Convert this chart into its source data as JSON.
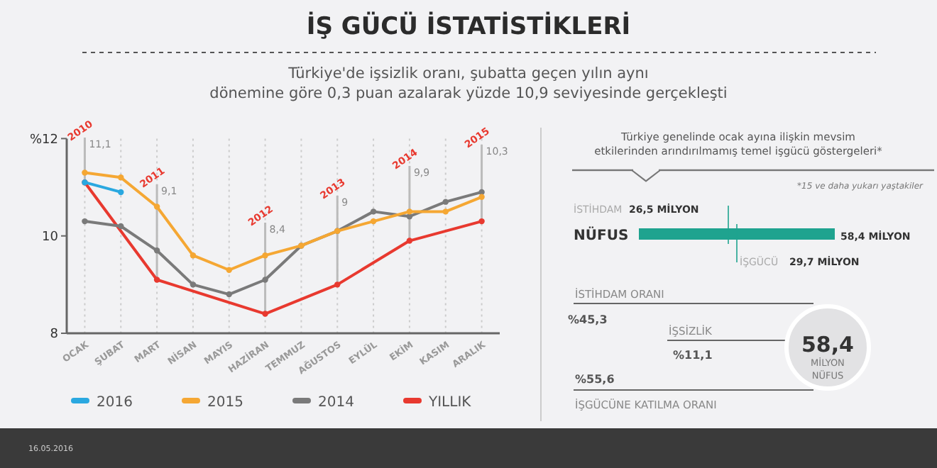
{
  "chart_data": [
    {
      "type": "line",
      "title": "İŞ GÜCÜ İSTATİSTİKLERİ",
      "subtitle": "Türkiye'de işsizlik oranı, şubatta geçen yılın aynı dönemine göre 0,3 puan azalarak yüzde 10,9 seviyesinde gerçekleşti",
      "categories": [
        "OCAK",
        "ŞUBAT",
        "MART",
        "NİSAN",
        "MAYIS",
        "HAZİRAN",
        "TEMMUZ",
        "AĞUSTOS",
        "EYLÜL",
        "EKİM",
        "KASIM",
        "ARALIK"
      ],
      "ylim": [
        8,
        12
      ],
      "yticks": [
        8,
        10,
        {
          "value": 12,
          "label": "%12"
        }
      ],
      "grid": "x",
      "legend": "bottom",
      "marker": "circle",
      "series": [
        {
          "name": "2016",
          "color": "#2aa8e0",
          "values": [
            11.1,
            10.9,
            null,
            null,
            null,
            null,
            null,
            null,
            null,
            null,
            null,
            null
          ]
        },
        {
          "name": "2015",
          "color": "#f5a733",
          "values": [
            11.3,
            11.2,
            10.6,
            9.6,
            9.3,
            9.6,
            9.8,
            10.1,
            10.3,
            10.5,
            10.5,
            10.8
          ]
        },
        {
          "name": "2014",
          "color": "#7a7a7a",
          "values": [
            10.3,
            10.2,
            9.7,
            9.0,
            8.8,
            9.1,
            9.8,
            10.1,
            10.5,
            10.4,
            10.7,
            10.9
          ]
        },
        {
          "name": "YILLIK",
          "color": "#e8392f",
          "x": [
            "OCAK",
            "MART",
            "HAZİRAN",
            "AĞUSTOS",
            "EKİM",
            "ARALIK"
          ],
          "values": [
            11.1,
            9.1,
            8.4,
            9.0,
            9.9,
            10.3
          ],
          "value_labels": [
            "11,1",
            "9,1",
            "8,4",
            "9",
            "9,9",
            "10,3"
          ]
        }
      ],
      "annotations": [
        {
          "text": "2010",
          "x": "OCAK",
          "y": 11.1
        },
        {
          "text": "2011",
          "x": "MART",
          "y": 9.1
        },
        {
          "text": "2012",
          "x": "HAZİRAN",
          "y": 8.4
        },
        {
          "text": "2013",
          "x": "AĞUSTOS",
          "y": 9.0
        },
        {
          "text": "2014",
          "x": "EKİM",
          "y": 9.9
        },
        {
          "text": "2015",
          "x": "ARALIK",
          "y": 10.3
        },
        "16.05.2016"
      ]
    },
    {
      "type": "other",
      "title": "Türkiye genelinde ocak ayına ilişkin mevsim etkilerinden arındırılmamış temel işgücü göstergeleri*",
      "annotations": [
        "*15 ve daha yukarı yaştakiler",
        "İSTİHDAM",
        "26,5 MİLYON",
        "NÜFUS",
        "58,4 MİLYON",
        "İŞGÜCÜ",
        "29,7 MİLYON",
        "İSTİHDAM ORANI",
        "%45,3",
        "İŞSİZLİK",
        "%11,1",
        "%55,6",
        "İŞGÜCÜNE KATILMA ORANI",
        "58,4",
        "MİLYON",
        "NÜFUS"
      ]
    }
  ]
}
